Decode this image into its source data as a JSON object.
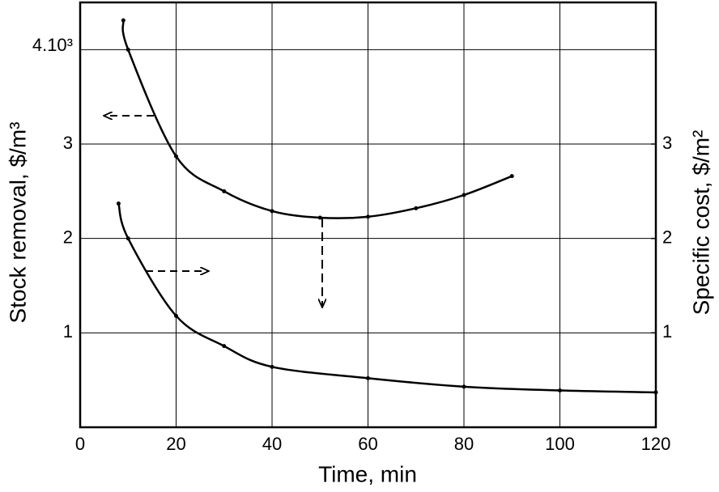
{
  "chart_data": {
    "type": "line",
    "x_label": "Time, min",
    "y_label": "Stock removal, $/m³",
    "y2_label": "Specific cost, $/m²",
    "xlim": [
      0,
      120
    ],
    "xticks": [
      0,
      20,
      40,
      60,
      80,
      100,
      120
    ],
    "ylim": [
      0,
      4.5
    ],
    "yticks": [
      1,
      2,
      3,
      {
        "value": 4,
        "label": "4.10³"
      }
    ],
    "y2lim": [
      0,
      4.5
    ],
    "y2ticks": [
      1,
      2,
      3
    ],
    "grid": true,
    "series": [
      {
        "x": [
          9,
          10,
          20,
          30,
          40,
          50,
          60,
          70,
          80,
          90
        ],
        "values": [
          4.31,
          4.0,
          2.87,
          2.5,
          2.29,
          2.22,
          2.23,
          2.32,
          2.46,
          2.66
        ],
        "color": "#000000"
      },
      {
        "x": [
          8,
          10,
          20,
          30,
          40,
          60,
          80,
          100,
          120
        ],
        "values": [
          2.37,
          2.0,
          1.18,
          0.86,
          0.64,
          0.52,
          0.43,
          0.39,
          0.37
        ],
        "color": "#000000",
        "axis": "y2"
      }
    ]
  }
}
